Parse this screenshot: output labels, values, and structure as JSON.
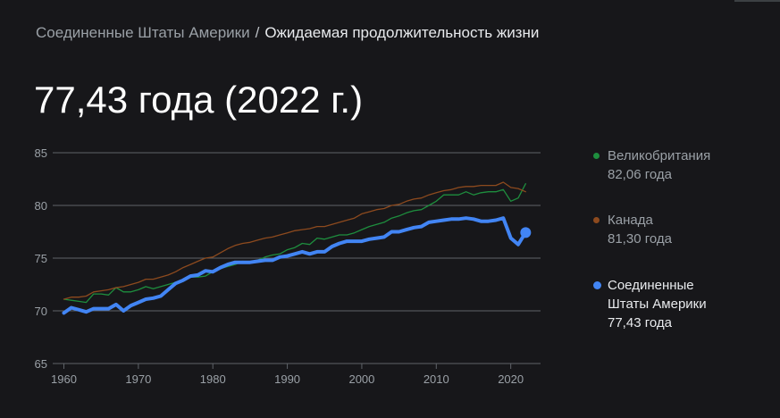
{
  "breadcrumb": {
    "country": "Соединенные Штаты Америки",
    "separator": "/",
    "metric": "Ожидаемая продолжительность жизни"
  },
  "headline": "77,43 года (2022 г.)",
  "colors": {
    "uk": "#1e8e3e",
    "canada": "#8d4a1e",
    "usa": "#4285f4",
    "grid": "#5f6368",
    "tick": "#9aa0a6"
  },
  "legend": [
    {
      "name": "Великобритания",
      "value": "82,06 года",
      "color": "#1e8e3e"
    },
    {
      "name": "Канада",
      "value": "81,30 года",
      "color": "#8d4a1e"
    },
    {
      "name": "Соединенные Штаты Америки",
      "value": "77,43 года",
      "color": "#4285f4"
    }
  ],
  "chart_data": {
    "type": "line",
    "title": "",
    "xlabel": "",
    "ylabel": "",
    "xlim": [
      1958.5,
      2024
    ],
    "ylim": [
      65,
      85
    ],
    "x_ticks": [
      "1960",
      "1970",
      "1980",
      "1990",
      "2000",
      "2010",
      "2020"
    ],
    "y_ticks": [
      "85",
      "80",
      "75",
      "70",
      "65"
    ],
    "grid": true,
    "legend_position": "right",
    "x": [
      1960,
      1961,
      1962,
      1963,
      1964,
      1965,
      1966,
      1967,
      1968,
      1969,
      1970,
      1971,
      1972,
      1973,
      1974,
      1975,
      1976,
      1977,
      1978,
      1979,
      1980,
      1981,
      1982,
      1983,
      1984,
      1985,
      1986,
      1987,
      1988,
      1989,
      1990,
      1991,
      1992,
      1993,
      1994,
      1995,
      1996,
      1997,
      1998,
      1999,
      2000,
      2001,
      2002,
      2003,
      2004,
      2005,
      2006,
      2007,
      2008,
      2009,
      2010,
      2011,
      2012,
      2013,
      2014,
      2015,
      2016,
      2017,
      2018,
      2019,
      2020,
      2021,
      2022
    ],
    "series": [
      {
        "name": "Великобритания",
        "values": [
          71.1,
          71.0,
          70.9,
          70.8,
          71.6,
          71.6,
          71.5,
          72.2,
          71.8,
          71.8,
          72.0,
          72.3,
          72.1,
          72.3,
          72.5,
          72.7,
          72.8,
          73.2,
          73.2,
          73.3,
          73.7,
          74.0,
          74.2,
          74.4,
          74.7,
          74.6,
          74.8,
          75.1,
          75.3,
          75.4,
          75.8,
          76.0,
          76.4,
          76.3,
          76.9,
          76.8,
          77.0,
          77.2,
          77.2,
          77.4,
          77.7,
          78.0,
          78.2,
          78.4,
          78.8,
          79.0,
          79.3,
          79.5,
          79.6,
          80.0,
          80.4,
          81.0,
          81.0,
          81.0,
          81.3,
          81.0,
          81.2,
          81.3,
          81.3,
          81.5,
          80.4,
          80.7,
          82.06
        ]
      },
      {
        "name": "Канада",
        "values": [
          71.1,
          71.3,
          71.3,
          71.4,
          71.8,
          71.9,
          72.0,
          72.2,
          72.3,
          72.5,
          72.7,
          73.0,
          73.0,
          73.2,
          73.4,
          73.7,
          74.1,
          74.4,
          74.7,
          75.0,
          75.1,
          75.5,
          75.9,
          76.2,
          76.4,
          76.5,
          76.7,
          76.9,
          77.0,
          77.2,
          77.4,
          77.6,
          77.7,
          77.8,
          78.0,
          78.0,
          78.2,
          78.4,
          78.6,
          78.8,
          79.2,
          79.4,
          79.6,
          79.7,
          80.0,
          80.1,
          80.4,
          80.6,
          80.7,
          81.0,
          81.2,
          81.4,
          81.5,
          81.7,
          81.8,
          81.8,
          81.9,
          81.9,
          81.9,
          82.2,
          81.7,
          81.6,
          81.3
        ]
      },
      {
        "name": "Соединенные Штаты Америки",
        "values": [
          69.8,
          70.3,
          70.1,
          69.9,
          70.2,
          70.2,
          70.2,
          70.6,
          70.0,
          70.5,
          70.8,
          71.1,
          71.2,
          71.4,
          72.0,
          72.6,
          72.9,
          73.3,
          73.4,
          73.8,
          73.7,
          74.1,
          74.4,
          74.6,
          74.6,
          74.6,
          74.7,
          74.8,
          74.8,
          75.1,
          75.2,
          75.4,
          75.6,
          75.4,
          75.6,
          75.6,
          76.1,
          76.4,
          76.6,
          76.6,
          76.6,
          76.8,
          76.9,
          77.0,
          77.5,
          77.5,
          77.7,
          77.9,
          78.0,
          78.4,
          78.5,
          78.6,
          78.7,
          78.7,
          78.8,
          78.7,
          78.5,
          78.5,
          78.6,
          78.8,
          76.9,
          76.3,
          77.43
        ]
      }
    ]
  }
}
